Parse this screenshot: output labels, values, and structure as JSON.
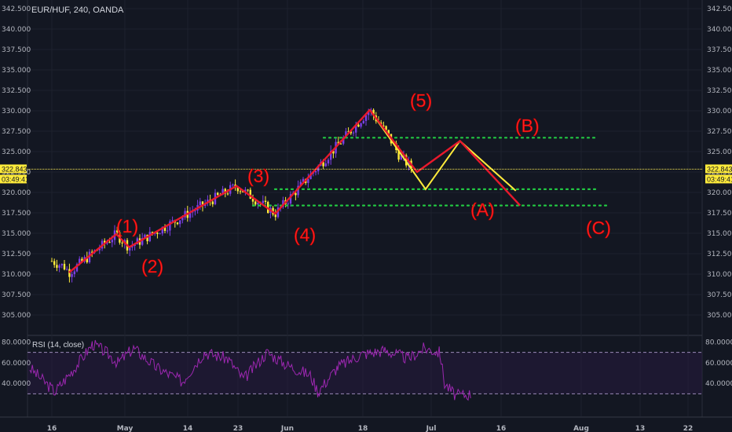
{
  "header": {
    "symbol": "EUR/HUF, 240, OANDA"
  },
  "rsi_panel": {
    "label": "RSI (14, close)"
  },
  "price_badge": {
    "price": "322.843",
    "timer": "03:49:41"
  },
  "colors": {
    "background": "#131722",
    "wave_line": "#e8192c",
    "projection_line": "#ffea3b",
    "support_dots": "#22c742",
    "price_line": "#ffee58",
    "rsi_line": "#9c27b0",
    "candle_up": "#7b3fe4",
    "candle_down": "#ffeb3b"
  },
  "chart_data": [
    {
      "type": "line",
      "ylim": [
        302.5,
        342.5
      ],
      "y_ticks": [
        "305.000",
        "307.500",
        "310.000",
        "312.500",
        "315.000",
        "317.500",
        "320.000",
        "322.500",
        "325.000",
        "327.500",
        "330.000",
        "332.500",
        "335.000",
        "337.500",
        "340.000",
        "342.500"
      ],
      "x_ticks": [
        "16",
        "May",
        "14",
        "23",
        "Jun",
        "18",
        "Jul",
        "16",
        "Aug",
        "13",
        "22"
      ],
      "current_price": 322.843,
      "series": [
        {
          "points": [
            {
              "t": "2018-04-20",
              "v": 310.2
            },
            {
              "t": "2018-05-01",
              "v": 314.9
            },
            {
              "t": "2018-05-04",
              "v": 313.3
            },
            {
              "t": "2018-05-29",
              "v": 320.8
            },
            {
              "t": "2018-06-07",
              "v": 317.4
            },
            {
              "t": "2018-06-29",
              "v": 330.1
            },
            {
              "t": "2018-07-10",
              "v": 322.5
            },
            {
              "t": "2018-07-20",
              "v": 326.3
            },
            {
              "t": "2018-08-03",
              "v": 318.4
            }
          ]
        },
        {
          "points": [
            {
              "t": "2018-06-29",
              "v": 330.1
            },
            {
              "t": "2018-07-12",
              "v": 320.4
            },
            {
              "t": "2018-07-20",
              "v": 326.3
            },
            {
              "t": "2018-08-02",
              "v": 320.2
            }
          ]
        }
      ],
      "levels": [
        326.7,
        320.4,
        318.4
      ],
      "wave_labels": [
        "(1)",
        "(2)",
        "(3)",
        "(4)",
        "(5)",
        "(A)",
        "(B)",
        "(C)"
      ]
    },
    {
      "type": "line",
      "ylim": [
        23,
        83
      ],
      "y_ticks": [
        "40.0000",
        "60.0000",
        "80.0000"
      ],
      "overbought": 70,
      "oversold": 30
    }
  ]
}
